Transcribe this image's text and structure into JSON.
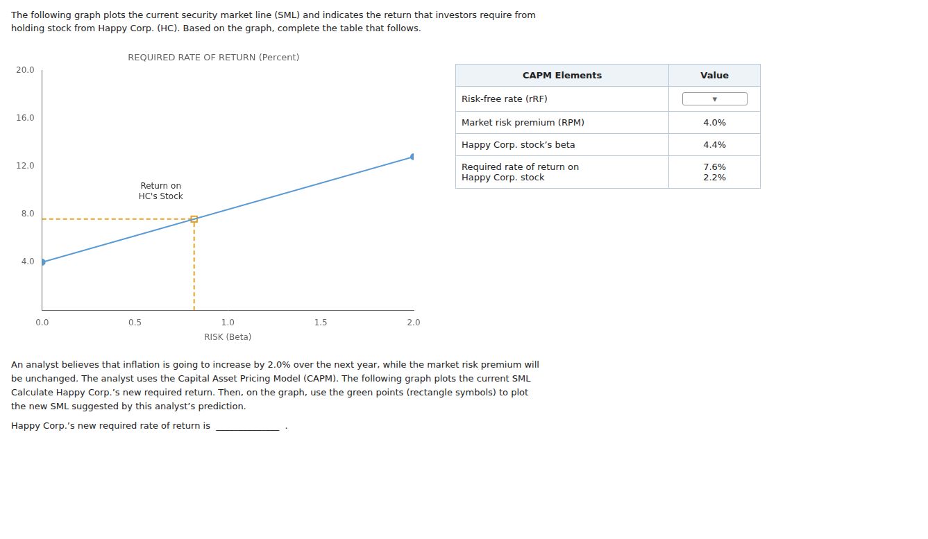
{
  "chart_data": {
    "type": "line",
    "title": "REQUIRED RATE OF RETURN (Percent)",
    "xlabel": "RISK (Beta)",
    "xlim": [
      0.0,
      2.0
    ],
    "ylim": [
      0.0,
      20.0
    ],
    "xticks": [
      {
        "value": 0.0,
        "label": "0.0"
      },
      {
        "value": 0.5,
        "label": "0.5"
      },
      {
        "value": 1.0,
        "label": "1.0"
      },
      {
        "value": 1.5,
        "label": "1.5"
      },
      {
        "value": 2.0,
        "label": "2.0"
      }
    ],
    "yticks": [
      {
        "value": 4.0,
        "label": "4.0"
      },
      {
        "value": 8.0,
        "label": "8.0"
      },
      {
        "value": 12.0,
        "label": "12.0"
      },
      {
        "value": 16.0,
        "label": "16.0"
      },
      {
        "value": 20.0,
        "label": "20.0"
      }
    ],
    "grid": false,
    "series": [
      {
        "x": [
          0.0,
          2.0
        ],
        "values": [
          4.0,
          12.8
        ],
        "color": "#5B9BD5",
        "marker": "circle",
        "line_style": "solid"
      },
      {
        "x": [
          0.0,
          0.8181818
        ],
        "values": [
          7.6,
          7.6
        ],
        "color": "#E8A020",
        "marker": "none",
        "line_style": "dashed"
      },
      {
        "x": [
          0.8181818,
          0.8181818
        ],
        "values": [
          0.0,
          7.6
        ],
        "color": "#E8A020",
        "marker": "none",
        "line_style": "dashed"
      },
      {
        "x": [
          0.8181818
        ],
        "values": [
          7.6
        ],
        "color": "#E8A020",
        "marker": "square",
        "line_style": "none"
      }
    ],
    "annotations": [
      {
        "text": "Return on\nHC's Stock",
        "x": 0.8181818,
        "y": 7.6
      }
    ]
  },
  "intro": [
    "The following graph plots the current security market line (SML) and indicates the return that investors require from",
    "holding stock from Happy Corp. (HC). Based on the graph, complete the table that follows."
  ],
  "table": {
    "header": [
      "CAPM Elements",
      "Value"
    ],
    "rows": [
      {
        "label": "Risk-free rate (rRF)",
        "value": "▾"
      },
      {
        "label": "Market risk premium (RPM)",
        "value": "4.0%"
      },
      {
        "label": "Happy Corp. stock’s beta",
        "value": "4.4%"
      },
      {
        "label": "Required rate of return on\nHappy Corp. stock",
        "value": "7.6%\n2.2%"
      }
    ]
  },
  "notes": [
    "An analyst believes that inflation is going to increase by 2.0% over the next year, while the market risk premium will",
    "be unchanged. The analyst uses the Capital Asset Pricing Model (CAPM). The following graph plots the current SML",
    "Calculate Happy Corp.’s new required return. Then, on the graph, use the green points (rectangle symbols) to plot",
    "the new SML suggested by this analyst’s prediction."
  ],
  "prompt": "Happy Corp.’s new required rate of return is  ______________  ."
}
